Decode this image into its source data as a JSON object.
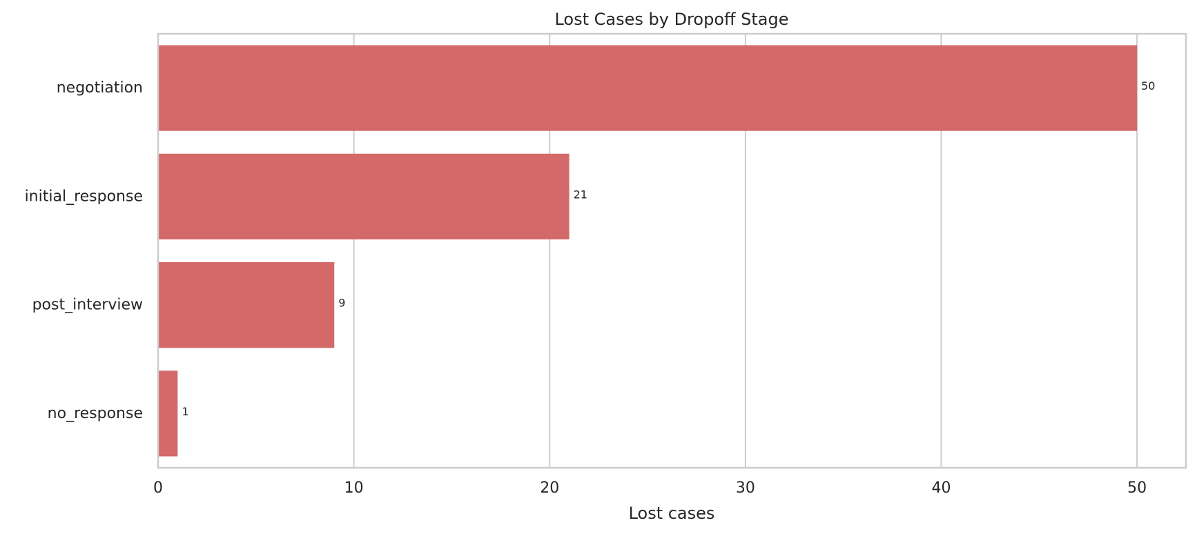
{
  "chart_data": {
    "type": "bar",
    "orientation": "horizontal",
    "title": "Lost Cases by Dropoff Stage",
    "xlabel": "Lost cases",
    "ylabel": "",
    "categories": [
      "negotiation",
      "initial_response",
      "post_interview",
      "no_response"
    ],
    "values": [
      50,
      21,
      9,
      1
    ],
    "data_labels": [
      "50",
      "21",
      "9",
      "1"
    ],
    "xlim": [
      0,
      52.5
    ],
    "x_ticks": [
      0,
      10,
      20,
      30,
      40,
      50
    ],
    "x_tick_labels": [
      "0",
      "10",
      "20",
      "30",
      "40",
      "50"
    ],
    "grid": "vertical",
    "legend": "none",
    "bar_color": "#d4696a"
  }
}
